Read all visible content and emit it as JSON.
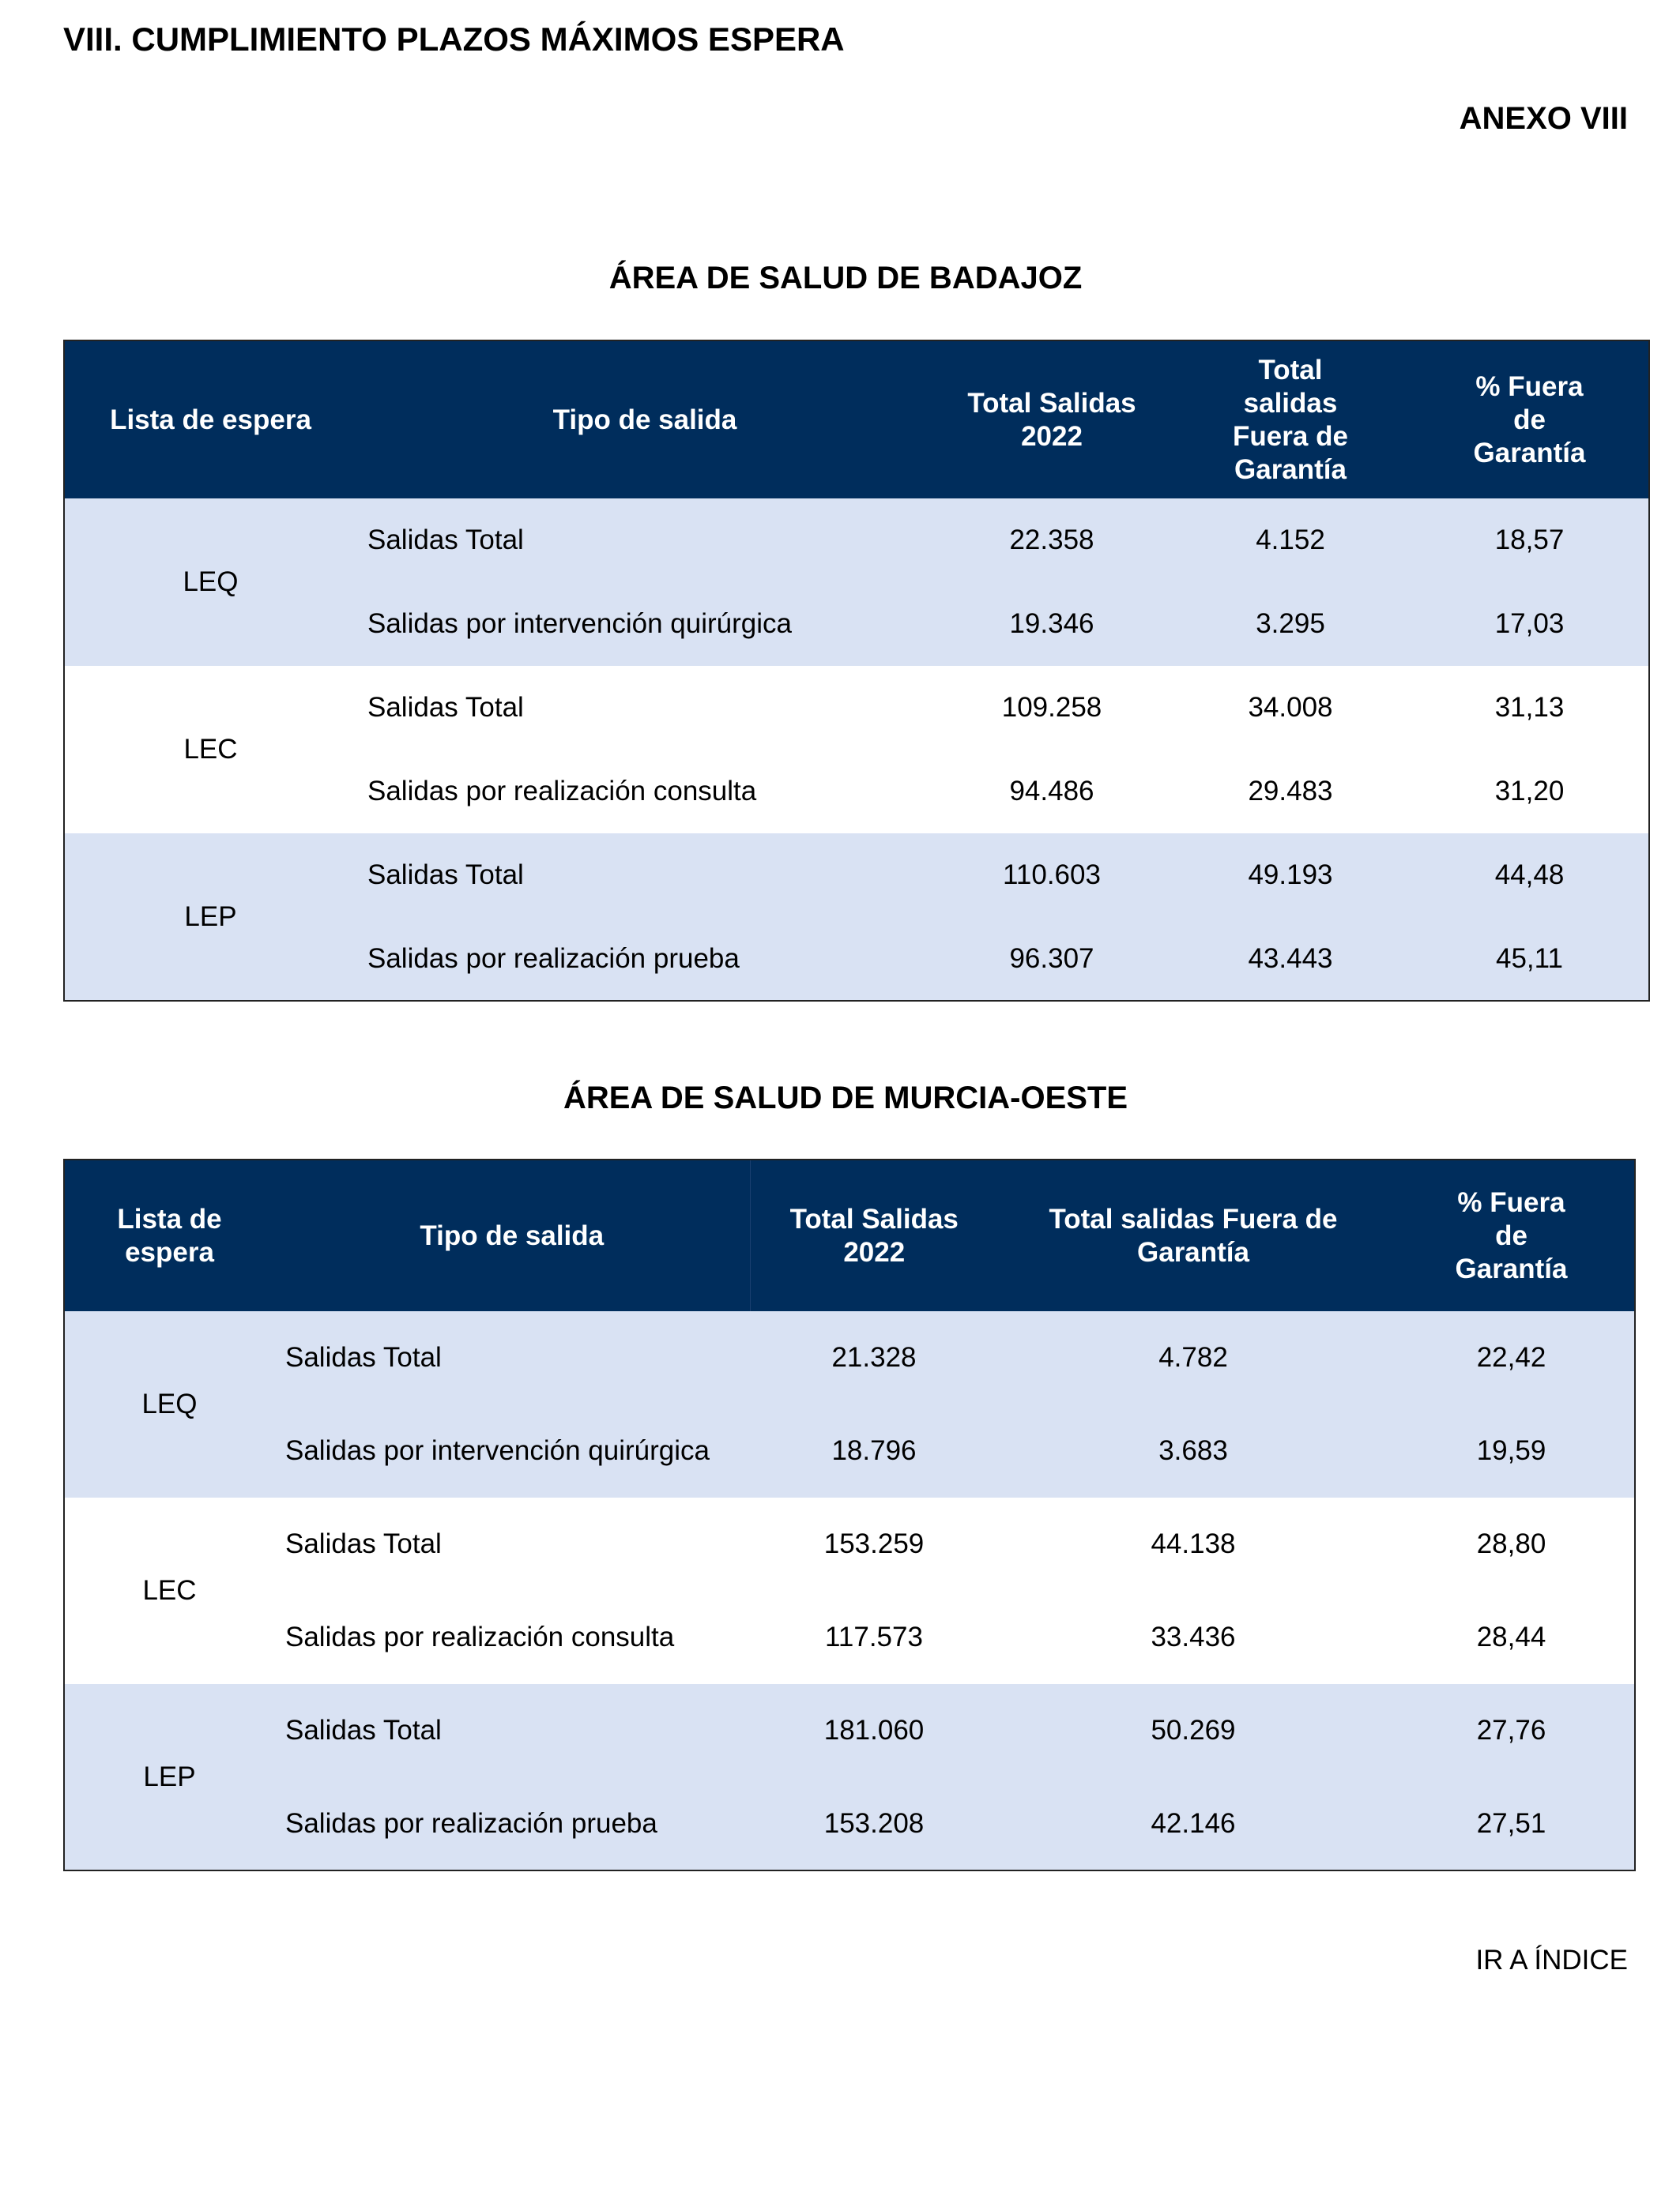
{
  "title": "VIII.  CUMPLIMIENTO PLAZOS MÁXIMOS ESPERA",
  "annex": "ANEXO VIII",
  "tables": [
    {
      "heading": "ÁREA DE SALUD DE BADAJOZ",
      "headers": [
        "Lista de espera",
        "Tipo de salida",
        "Total Salidas 2022",
        "Total salidas Fuera de Garantía",
        "% Fuera de Garantía"
      ],
      "groups": [
        {
          "lista": "LEQ",
          "rows": [
            {
              "tipo": "Salidas Total",
              "total": "22.358",
              "fuera": "4.152",
              "pct": "18,57"
            },
            {
              "tipo": "Salidas por intervención quirúrgica",
              "total": "19.346",
              "fuera": "3.295",
              "pct": "17,03"
            }
          ]
        },
        {
          "lista": "LEC",
          "rows": [
            {
              "tipo": "Salidas Total",
              "total": "109.258",
              "fuera": "34.008",
              "pct": "31,13"
            },
            {
              "tipo": "Salidas por realización consulta",
              "total": "94.486",
              "fuera": "29.483",
              "pct": "31,20"
            }
          ]
        },
        {
          "lista": "LEP",
          "rows": [
            {
              "tipo": "Salidas Total",
              "total": "110.603",
              "fuera": "49.193",
              "pct": "44,48"
            },
            {
              "tipo": "Salidas por realización prueba",
              "total": "96.307",
              "fuera": "43.443",
              "pct": "45,11"
            }
          ]
        }
      ]
    },
    {
      "heading": "ÁREA DE SALUD DE MURCIA-OESTE",
      "headers": [
        "Lista de espera",
        "Tipo de salida",
        "Total Salidas 2022",
        "Total salidas Fuera de Garantía",
        "% Fuera de Garantía"
      ],
      "groups": [
        {
          "lista": "LEQ",
          "rows": [
            {
              "tipo": "Salidas Total",
              "total": "21.328",
              "fuera": "4.782",
              "pct": "22,42"
            },
            {
              "tipo": "Salidas por intervención quirúrgica",
              "total": "18.796",
              "fuera": "3.683",
              "pct": "19,59"
            }
          ]
        },
        {
          "lista": "LEC",
          "rows": [
            {
              "tipo": "Salidas Total",
              "total": "153.259",
              "fuera": "44.138",
              "pct": "28,80"
            },
            {
              "tipo": "Salidas por realización consulta",
              "total": "117.573",
              "fuera": "33.436",
              "pct": "28,44"
            }
          ]
        },
        {
          "lista": "LEP",
          "rows": [
            {
              "tipo": "Salidas Total",
              "total": "181.060",
              "fuera": "50.269",
              "pct": "27,76"
            },
            {
              "tipo": "Salidas por realización prueba",
              "total": "153.208",
              "fuera": "42.146",
              "pct": "27,51"
            }
          ]
        }
      ]
    }
  ],
  "index_link": "IR A ÍNDICE",
  "colors": {
    "header_bg": "#002d5c",
    "row_shade": "#d9e2f3"
  }
}
